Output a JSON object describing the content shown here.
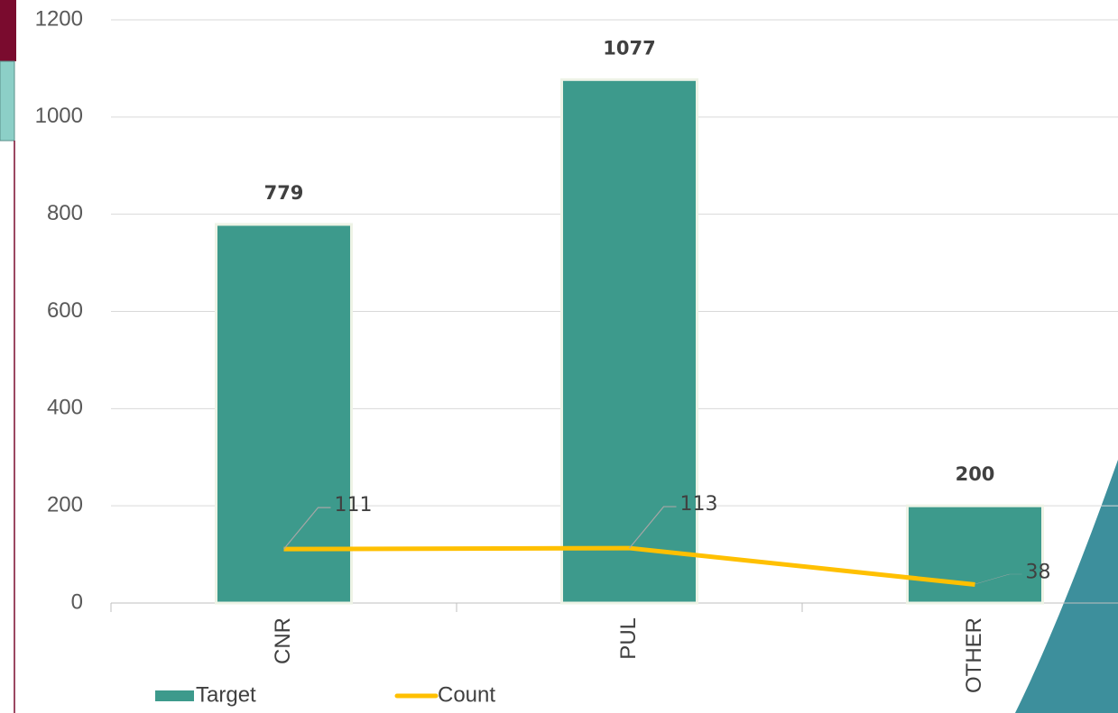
{
  "chart_data": {
    "type": "bar",
    "categories": [
      "CNR",
      "PUL",
      "OTHER"
    ],
    "series": [
      {
        "name": "Target",
        "type": "bar",
        "color": "#3d9a8c",
        "values": [
          779,
          1077,
          200
        ]
      },
      {
        "name": "Count",
        "type": "line",
        "color": "#ffc000",
        "values": [
          111,
          113,
          38
        ]
      }
    ],
    "ylim": [
      0,
      1200
    ],
    "yticks": [
      0,
      200,
      400,
      600,
      800,
      1000,
      1200
    ],
    "grid": true
  }
}
